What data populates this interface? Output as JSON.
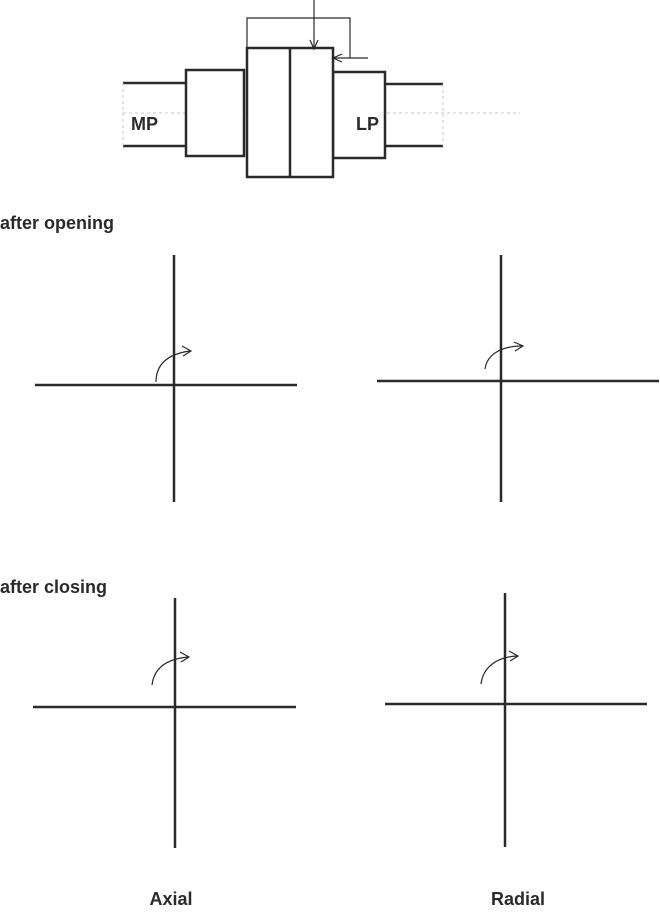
{
  "shaft": {
    "left_label": "MP",
    "right_label": "LP"
  },
  "sections": {
    "opening_title": "after opening",
    "closing_title": "after closing"
  },
  "columns": {
    "axial": "Axial",
    "radial": "Radial"
  }
}
